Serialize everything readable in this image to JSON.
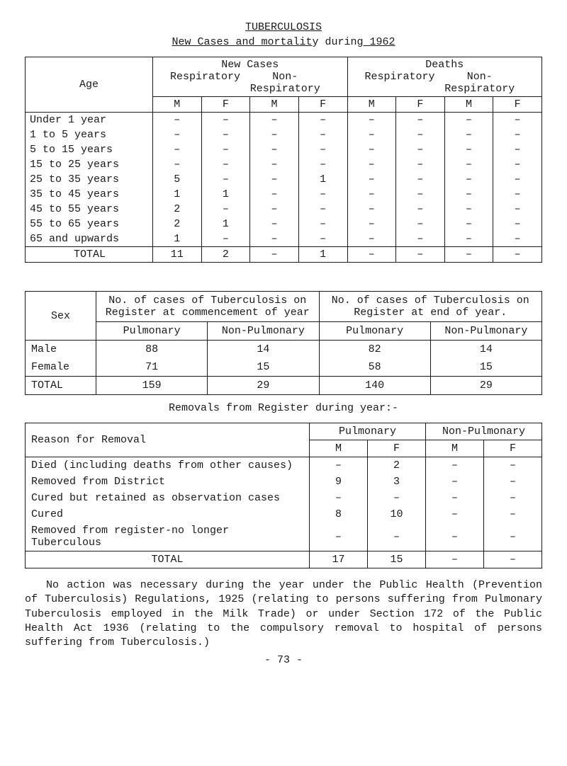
{
  "title": "TUBERCULOSIS",
  "subtitle_a": "New Cases and mortalit",
  "subtitle_b": "y durin",
  "subtitle_c": "g 1962",
  "dash": "–",
  "t1": {
    "h_age": "Age",
    "h_new": "New Cases",
    "h_deaths": "Deaths",
    "h_resp": "Respiratory",
    "h_nonresp": "Non-Respiratory",
    "h_m": "M",
    "h_f": "F",
    "rows": [
      {
        "label": "Under 1 year",
        "v": [
          "–",
          "–",
          "–",
          "–",
          "–",
          "–",
          "–",
          "–"
        ]
      },
      {
        "label": "1  to  5 years",
        "v": [
          "–",
          "–",
          "–",
          "–",
          "–",
          "–",
          "–",
          "–"
        ]
      },
      {
        "label": "5  to 15 years",
        "v": [
          "–",
          "–",
          "–",
          "–",
          "–",
          "–",
          "–",
          "–"
        ]
      },
      {
        "label": "15 to 25 years",
        "v": [
          "–",
          "–",
          "–",
          "–",
          "–",
          "–",
          "–",
          "–"
        ]
      },
      {
        "label": "25 to 35 years",
        "v": [
          "5",
          "–",
          "–",
          "1",
          "–",
          "–",
          "–",
          "–"
        ]
      },
      {
        "label": "35 to 45 years",
        "v": [
          "1",
          "1",
          "–",
          "–",
          "–",
          "–",
          "–",
          "–"
        ]
      },
      {
        "label": "45 to 55 years",
        "v": [
          "2",
          "–",
          "–",
          "–",
          "–",
          "–",
          "–",
          "–"
        ]
      },
      {
        "label": "55 to 65 years",
        "v": [
          "2",
          "1",
          "–",
          "–",
          "–",
          "–",
          "–",
          "–"
        ]
      },
      {
        "label": "65 and upwards",
        "v": [
          "1",
          "–",
          "–",
          "–",
          "–",
          "–",
          "–",
          "–"
        ]
      }
    ],
    "total_label": "TOTAL",
    "total": [
      "11",
      "2",
      "–",
      "1",
      "–",
      "–",
      "–",
      "–"
    ]
  },
  "t2": {
    "h_sex": "Sex",
    "h_start": "No. of cases of Tuberculosis on Register at commencement of year",
    "h_end": "No. of cases of Tuberculosis on Register at end of year.",
    "h_pul": "Pulmonary",
    "h_nonpul": "Non-Pulmonary",
    "rows": [
      {
        "label": "Male",
        "v": [
          "88",
          "14",
          "82",
          "14"
        ]
      },
      {
        "label": "Female",
        "v": [
          "71",
          "15",
          "58",
          "15"
        ]
      }
    ],
    "total_label": "TOTAL",
    "total": [
      "159",
      "29",
      "140",
      "29"
    ]
  },
  "caption": "Removals from Register during year:-",
  "t3": {
    "h_reason": "Reason for Removal",
    "h_pul": "Pulmonary",
    "h_nonpul": "Non-Pulmonary",
    "h_m": "M",
    "h_f": "F",
    "rows": [
      {
        "label": "Died (including deaths from other causes)",
        "v": [
          "–",
          "2",
          "–",
          "–"
        ]
      },
      {
        "label": "Removed from District",
        "v": [
          "9",
          "3",
          "–",
          "–"
        ]
      },
      {
        "label": "Cured but retained as observation cases",
        "v": [
          "–",
          "–",
          "–",
          "–"
        ]
      },
      {
        "label": "Cured",
        "v": [
          "8",
          "10",
          "–",
          "–"
        ]
      },
      {
        "label": "Removed from register-no longer Tuberculous",
        "v": [
          "–",
          "–",
          "–",
          "–"
        ]
      }
    ],
    "total_label": "TOTAL",
    "total": [
      "17",
      "15",
      "–",
      "–"
    ]
  },
  "paragraph": "No action was necessary during the year under the Public Health (Pre­vention of Tuberculosis) Regulations, 1925 (relating to persons suffering from Pulmonary Tuberculosis employed in the Milk Trade) or under Section 172 of the Public Health Act 1936 (relating to the compulsory removal to hospital of persons suffering from Tuberculosis.)",
  "pagenum": "- 73 -"
}
